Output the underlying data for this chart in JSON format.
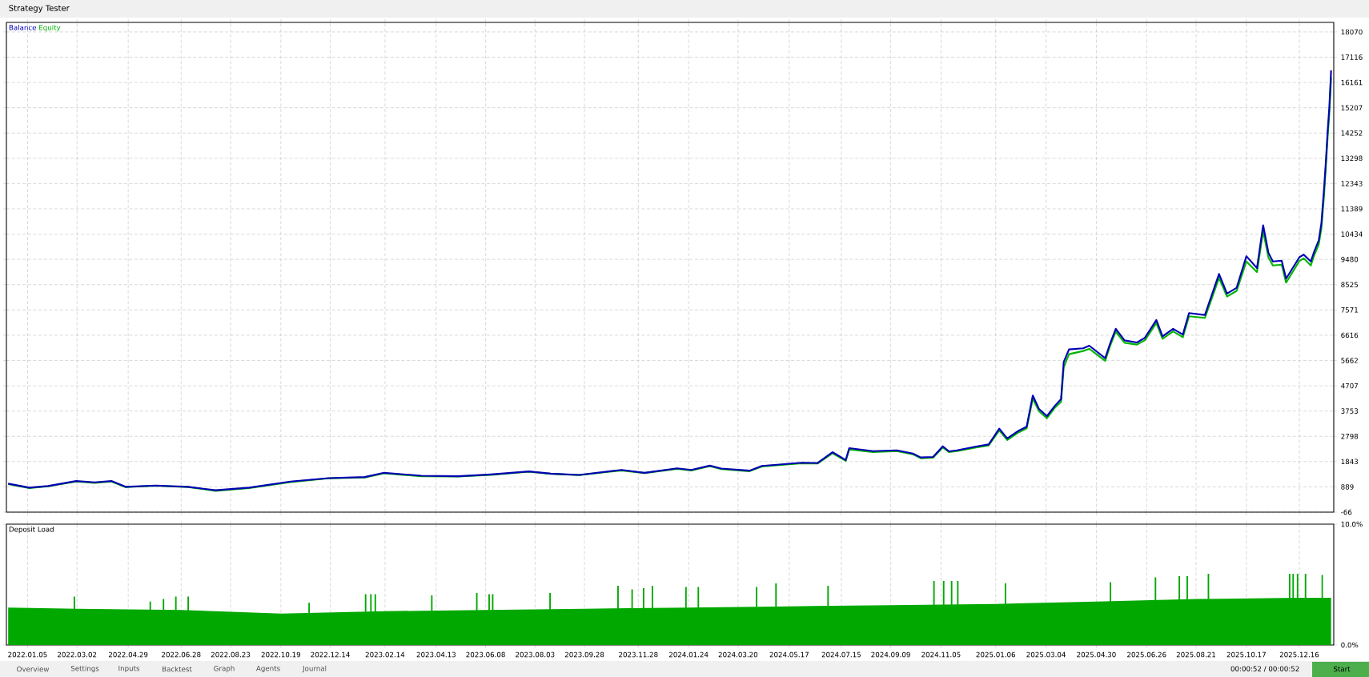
{
  "chart_data": [
    {
      "type": "line",
      "xlim": [
        "2021-12-12",
        "2026-01-24"
      ],
      "ylim": [
        -66,
        18430
      ],
      "xticks": [
        {
          "value": "2022-01-05",
          "label": null
        },
        {
          "value": "2022-03-02",
          "label": null
        },
        {
          "value": "2022-04-29",
          "label": null
        },
        {
          "value": "2022-06-28",
          "label": null
        },
        {
          "value": "2022-08-23",
          "label": null
        },
        {
          "value": "2022-10-19",
          "label": null
        },
        {
          "value": "2022-12-14",
          "label": null
        },
        {
          "value": "2023-02-14",
          "label": null
        },
        {
          "value": "2023-04-13",
          "label": null
        },
        {
          "value": "2023-06-08",
          "label": null
        },
        {
          "value": "2023-08-03",
          "label": null
        },
        {
          "value": "2023-09-28",
          "label": null
        },
        {
          "value": "2023-11-28",
          "label": null
        },
        {
          "value": "2024-01-24",
          "label": null
        },
        {
          "value": "2024-03-20",
          "label": null
        },
        {
          "value": "2024-05-17",
          "label": null
        },
        {
          "value": "2024-07-15",
          "label": null
        },
        {
          "value": "2024-09-09",
          "label": null
        },
        {
          "value": "2024-11-05",
          "label": null
        },
        {
          "value": "2025-01-06",
          "label": null
        },
        {
          "value": "2025-03-04",
          "label": null
        },
        {
          "value": "2025-04-30",
          "label": null
        },
        {
          "value": "2025-06-26",
          "label": null
        },
        {
          "value": "2025-08-21",
          "label": null
        },
        {
          "value": "2025-10-17",
          "label": null
        },
        {
          "value": "2025-12-16",
          "label": null
        }
      ],
      "yticks": [
        -66,
        889,
        1843,
        2798,
        3753,
        4707,
        5662,
        6616,
        7571,
        8525,
        9480,
        10434,
        11389,
        12343,
        13298,
        14252,
        15207,
        16161,
        17116,
        18070
      ],
      "tick_labels": "y",
      "grid": true,
      "legend": "top left",
      "x": [
        "2021-12-14",
        "2022-01-07",
        "2022-01-28",
        "2022-03-01",
        "2022-03-22",
        "2022-04-10",
        "2022-04-26",
        "2022-05-30",
        "2022-07-06",
        "2022-08-06",
        "2022-09-13",
        "2022-10-30",
        "2022-12-12",
        "2023-01-22",
        "2023-02-13",
        "2023-03-27",
        "2023-05-08",
        "2023-06-14",
        "2023-07-27",
        "2023-08-21",
        "2023-09-22",
        "2023-11-09",
        "2023-12-05",
        "2024-01-11",
        "2024-01-27",
        "2024-02-17",
        "2024-03-01",
        "2024-04-02",
        "2024-04-16",
        "2024-05-31",
        "2024-06-18",
        "2024-07-05",
        "2024-07-20",
        "2024-07-24",
        "2024-08-20",
        "2024-09-16",
        "2024-10-04",
        "2024-10-13",
        "2024-10-27",
        "2024-11-07",
        "2024-11-14",
        "2024-11-23",
        "2024-12-16",
        "2024-12-29",
        "2025-01-10",
        "2025-01-19",
        "2025-02-01",
        "2025-02-10",
        "2025-02-17",
        "2025-02-24",
        "2025-03-05",
        "2025-03-14",
        "2025-03-21",
        "2025-03-24",
        "2025-03-30",
        "2025-04-15",
        "2025-04-22",
        "2025-05-10",
        "2025-05-16",
        "2025-05-22",
        "2025-06-01",
        "2025-06-15",
        "2025-06-24",
        "2025-07-07",
        "2025-07-14",
        "2025-07-26",
        "2025-08-06",
        "2025-08-13",
        "2025-08-31",
        "2025-09-16",
        "2025-09-25",
        "2025-10-06",
        "2025-10-17",
        "2025-10-29",
        "2025-11-05",
        "2025-11-11",
        "2025-11-16",
        "2025-11-26",
        "2025-12-01",
        "2025-12-16",
        "2025-12-21",
        "2025-12-29",
        "2026-01-02",
        "2026-01-07",
        "2026-01-10",
        "2026-01-13",
        "2026-01-15",
        "2026-01-17",
        "2026-01-19",
        "2026-01-21"
      ],
      "series": [
        {
          "name": "Balance",
          "color": "#0000b4",
          "values": [
            1010,
            860,
            920,
            1110,
            1060,
            1110,
            890,
            940,
            890,
            760,
            860,
            1090,
            1220,
            1260,
            1420,
            1310,
            1290,
            1360,
            1470,
            1390,
            1340,
            1530,
            1420,
            1590,
            1530,
            1690,
            1580,
            1500,
            1680,
            1800,
            1790,
            2200,
            1900,
            2350,
            2240,
            2270,
            2150,
            2000,
            2020,
            2420,
            2230,
            2270,
            2420,
            2490,
            3090,
            2720,
            3010,
            3160,
            4340,
            3830,
            3560,
            3950,
            4200,
            5600,
            6080,
            6120,
            6220,
            5750,
            6340,
            6860,
            6420,
            6340,
            6520,
            7190,
            6570,
            6860,
            6640,
            7450,
            7380,
            8930,
            8190,
            8410,
            9600,
            9150,
            10770,
            9730,
            9400,
            9430,
            8750,
            9560,
            9660,
            9400,
            9790,
            10200,
            10850,
            12150,
            13140,
            14280,
            15240,
            16620
          ]
        },
        {
          "name": "Equity",
          "color": "#00b400",
          "values": [
            990,
            840,
            910,
            1090,
            1040,
            1090,
            880,
            930,
            880,
            740,
            840,
            1070,
            1210,
            1240,
            1400,
            1290,
            1280,
            1340,
            1460,
            1380,
            1330,
            1510,
            1410,
            1570,
            1510,
            1670,
            1560,
            1480,
            1660,
            1780,
            1770,
            2160,
            1870,
            2300,
            2200,
            2240,
            2120,
            1970,
            1990,
            2380,
            2200,
            2240,
            2380,
            2450,
            3020,
            2660,
            2950,
            3100,
            4220,
            3750,
            3480,
            3880,
            4100,
            5400,
            5900,
            6020,
            6100,
            5650,
            6250,
            6750,
            6330,
            6260,
            6430,
            7080,
            6480,
            6760,
            6540,
            7330,
            7270,
            8780,
            8080,
            8290,
            9400,
            9000,
            10550,
            9550,
            9250,
            9280,
            8600,
            9420,
            9520,
            9250,
            9650,
            10050,
            10650,
            11900,
            12950,
            14050,
            15000,
            16350
          ]
        }
      ]
    },
    {
      "type": "bar",
      "title": "Deposit Load",
      "xlim": [
        "2021-12-12",
        "2026-01-24"
      ],
      "ylim": [
        0,
        10
      ],
      "xticks": [
        {
          "value": "2022-01-05",
          "label": "2022.01.05"
        },
        {
          "value": "2022-03-02",
          "label": "2022.03.02"
        },
        {
          "value": "2022-04-29",
          "label": "2022.04.29"
        },
        {
          "value": "2022-06-28",
          "label": "2022.06.28"
        },
        {
          "value": "2022-08-23",
          "label": "2022.08.23"
        },
        {
          "value": "2022-10-19",
          "label": "2022.10.19"
        },
        {
          "value": "2022-12-14",
          "label": "2022.12.14"
        },
        {
          "value": "2023-02-14",
          "label": "2023.02.14"
        },
        {
          "value": "2023-04-13",
          "label": "2023.04.13"
        },
        {
          "value": "2023-06-08",
          "label": "2023.06.08"
        },
        {
          "value": "2023-08-03",
          "label": "2023.08.03"
        },
        {
          "value": "2023-09-28",
          "label": "2023.09.28"
        },
        {
          "value": "2023-11-28",
          "label": "2023.11.28"
        },
        {
          "value": "2024-01-24",
          "label": "2024.01.24"
        },
        {
          "value": "2024-03-20",
          "label": "2024.03.20"
        },
        {
          "value": "2024-05-17",
          "label": "2024.05.17"
        },
        {
          "value": "2024-07-15",
          "label": "2024.07.15"
        },
        {
          "value": "2024-09-09",
          "label": "2024.09.09"
        },
        {
          "value": "2024-11-05",
          "label": "2024.11.05"
        },
        {
          "value": "2025-01-06",
          "label": "2025.01.06"
        },
        {
          "value": "2025-03-04",
          "label": "2025.03.04"
        },
        {
          "value": "2025-04-30",
          "label": "2025.04.30"
        },
        {
          "value": "2025-06-26",
          "label": "2025.06.26"
        },
        {
          "value": "2025-08-21",
          "label": "2025.08.21"
        },
        {
          "value": "2025-10-17",
          "label": "2025.10.17"
        },
        {
          "value": "2025-12-16",
          "label": "2025.12.16"
        }
      ],
      "yticks": [
        {
          "value": 0,
          "label": "0.0%"
        },
        {
          "value": 10,
          "label": "10.0%"
        }
      ],
      "grid": "x",
      "series": [
        {
          "type": "area",
          "color": "#00a800",
          "x": [
            "2021-12-14",
            "2022-03-02",
            "2022-06-28",
            "2022-10-19",
            "2023-02-14",
            "2023-06-08",
            "2023-09-28",
            "2024-01-24",
            "2024-05-17",
            "2024-09-09",
            "2025-01-06",
            "2025-04-30",
            "2025-08-21",
            "2025-12-16",
            "2026-01-21"
          ],
          "values": [
            3.1,
            3.0,
            2.9,
            2.6,
            2.8,
            2.9,
            3.0,
            3.1,
            3.2,
            3.3,
            3.4,
            3.6,
            3.8,
            3.9,
            3.9
          ]
        },
        {
          "color": "#00a800",
          "x": [
            "2022-02-27",
            "2022-05-24",
            "2022-06-08",
            "2022-06-22",
            "2022-07-06",
            "2022-11-20",
            "2023-01-23",
            "2023-01-29",
            "2023-02-03",
            "2023-04-08",
            "2023-05-29",
            "2023-06-12",
            "2023-06-16",
            "2023-08-20",
            "2023-11-05",
            "2023-11-21",
            "2023-12-04",
            "2023-12-14",
            "2024-01-21",
            "2024-02-04",
            "2024-04-10",
            "2024-05-02",
            "2024-06-30",
            "2024-10-28",
            "2024-11-08",
            "2024-11-17",
            "2024-11-24",
            "2025-01-17",
            "2025-05-16",
            "2025-07-06",
            "2025-08-02",
            "2025-08-11",
            "2025-09-04",
            "2025-12-05",
            "2025-12-09",
            "2025-12-14",
            "2025-12-23",
            "2026-01-11"
          ],
          "values": [
            4.0,
            3.6,
            3.8,
            4.0,
            4.0,
            3.5,
            4.2,
            4.2,
            4.2,
            4.1,
            4.3,
            4.2,
            4.2,
            4.3,
            4.9,
            4.6,
            4.7,
            4.9,
            4.8,
            4.8,
            4.8,
            5.1,
            4.9,
            5.3,
            5.3,
            5.3,
            5.3,
            5.1,
            5.2,
            5.6,
            5.7,
            5.7,
            5.9,
            5.9,
            5.9,
            5.9,
            5.9,
            5.8
          ]
        }
      ]
    },
    {
      "type": "other",
      "title": "Strategy Tester",
      "annotations": [
        "Overview",
        "Settings",
        "Inputs",
        "Backtest",
        "Graph",
        "Agents",
        "Journal",
        "00:00:52 / 00:00:52",
        "Start"
      ]
    }
  ]
}
